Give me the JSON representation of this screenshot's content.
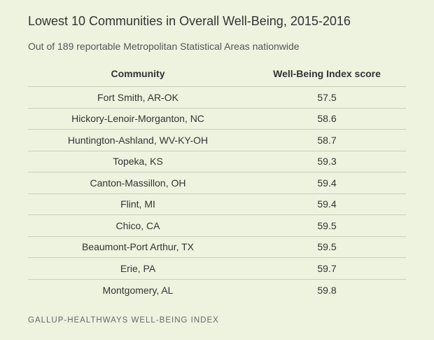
{
  "title": "Lowest 10 Communities in Overall Well-Being, 2015-2016",
  "subtitle": "Out of 189 reportable Metropolitan Statistical Areas nationwide",
  "source": "GALLUP-HEALTHWAYS WELL-BEING INDEX",
  "chart_data": {
    "type": "table",
    "title": "Lowest 10 Communities in Overall Well-Being, 2015-2016",
    "subtitle": "Out of 189 reportable Metropolitan Statistical Areas nationwide",
    "columns": [
      "Community",
      "Well-Being Index score"
    ],
    "rows": [
      [
        "Fort Smith, AR-OK",
        "57.5"
      ],
      [
        "Hickory-Lenoir-Morganton, NC",
        "58.6"
      ],
      [
        "Huntington-Ashland, WV-KY-OH",
        "58.7"
      ],
      [
        "Topeka, KS",
        "59.3"
      ],
      [
        "Canton-Massillon, OH",
        "59.4"
      ],
      [
        "Flint, MI",
        "59.4"
      ],
      [
        "Chico, CA",
        "59.5"
      ],
      [
        "Beaumont-Port Arthur, TX",
        "59.5"
      ],
      [
        "Erie, PA",
        "59.7"
      ],
      [
        "Montgomery, AL",
        "59.8"
      ]
    ]
  }
}
